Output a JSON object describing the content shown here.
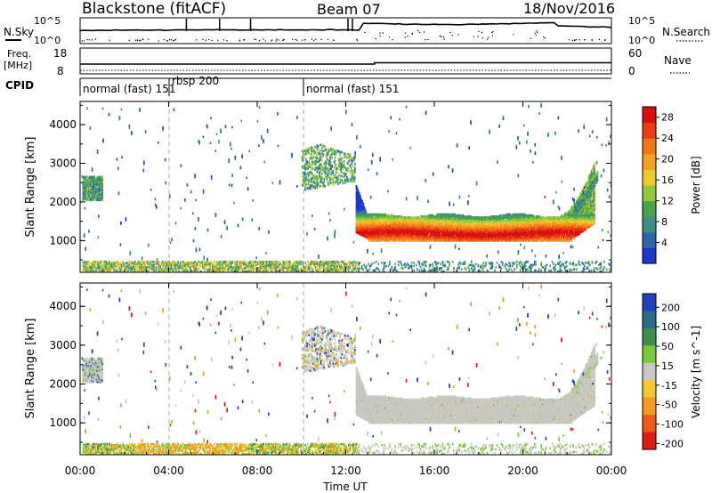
{
  "header": {
    "radar": "Blackstone (fitACF)",
    "beam": "Beam 07",
    "date": "18/Nov/2016"
  },
  "noise_panel": {
    "left_label": "N.Sky",
    "right_label": "N.Search",
    "tick_top": "10^5",
    "tick_bottom": "10^0"
  },
  "freq_panel": {
    "left_label": "Freq.",
    "left_unit": "[MHz]",
    "tick_top": "18",
    "tick_bottom": "8",
    "right_label": "Nave",
    "right_tick_top": "60",
    "right_tick_bottom": "0"
  },
  "cpid": {
    "label": "CPID",
    "segments": [
      {
        "name": "normal (fast) 151",
        "start": "00:00",
        "end": "04:00"
      },
      {
        "name": "rbsp 200",
        "start": "04:00",
        "end": "10:00"
      },
      {
        "name": "normal (fast) 151",
        "start": "10:00",
        "end": "24:00"
      }
    ]
  },
  "colors": {
    "power_scale": [
      "#1f35d0",
      "#2e64a8",
      "#3b8f80",
      "#4aa24a",
      "#8fcb3a",
      "#f0c832",
      "#f5a021",
      "#f07418",
      "#ea3d12",
      "#d81010"
    ],
    "velocity_scale": [
      "#2040c0",
      "#2c6a8c",
      "#3e8f4e",
      "#7cc83c",
      "#c8c8c0",
      "#f0c834",
      "#f49a22",
      "#ee5818",
      "#dc1c12"
    ]
  },
  "chart_data": [
    {
      "type": "heatmap",
      "parameter": "Power",
      "xlabel": "Time UT",
      "ylabel": "Slant Range [km]",
      "x_ticks": [
        "00:00",
        "04:00",
        "08:00",
        "12:00",
        "16:00",
        "20:00",
        "00:00"
      ],
      "xlim_hours": [
        0,
        24
      ],
      "y_ticks": [
        1000,
        2000,
        3000,
        4000
      ],
      "ylim": [
        180,
        4600
      ],
      "colorbar_label": "Power [dB]",
      "colorbar_ticks": [
        4,
        8,
        12,
        16,
        20,
        24,
        28
      ],
      "colorbar_range": [
        0,
        30
      ],
      "features": [
        {
          "name": "main echo band",
          "t_start": 12.5,
          "t_end": 23.2,
          "range_km": [
            1050,
            1700
          ],
          "power_db": [
            8,
            30
          ]
        },
        {
          "name": "near-range ground scatter",
          "t_start": 0.1,
          "t_end": 24,
          "range_km": [
            200,
            450
          ],
          "power_db": [
            4,
            20
          ]
        },
        {
          "name": "early far-range patch",
          "t_start": 0.1,
          "t_end": 1.0,
          "range_km": [
            2100,
            2600
          ],
          "power_db": [
            4,
            14
          ]
        },
        {
          "name": "pre-onset patch",
          "t_start": 10.0,
          "t_end": 12.4,
          "range_km": [
            2300,
            3600
          ],
          "power_db": [
            4,
            16
          ]
        }
      ]
    },
    {
      "type": "heatmap",
      "parameter": "Velocity",
      "xlabel": "Time UT",
      "ylabel": "Slant Range [km]",
      "x_ticks": [
        "00:00",
        "04:00",
        "08:00",
        "12:00",
        "16:00",
        "20:00",
        "00:00"
      ],
      "xlim_hours": [
        0,
        24
      ],
      "y_ticks": [
        1000,
        2000,
        3000,
        4000
      ],
      "ylim": [
        180,
        4600
      ],
      "colorbar_label": "Velocity [m s^-1]",
      "colorbar_ticks": [
        200,
        100,
        50,
        15,
        -15,
        -50,
        -100,
        -200
      ],
      "features": [
        {
          "name": "main echo band (low velocity)",
          "t_start": 12.5,
          "t_end": 23.2,
          "range_km": [
            1050,
            1700
          ],
          "velocity_ms": [
            -15,
            15
          ]
        },
        {
          "name": "near-range scatter",
          "t_start": 0.1,
          "t_end": 12.4,
          "range_km": [
            200,
            450
          ],
          "velocity_ms": [
            -50,
            50
          ]
        }
      ]
    }
  ]
}
